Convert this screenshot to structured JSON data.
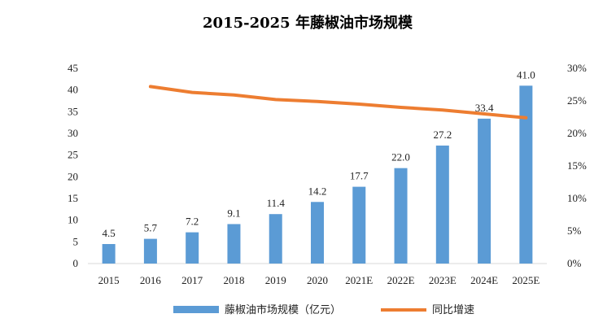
{
  "chart_data": {
    "type": "bar",
    "title": "2015-2025 年藤椒油市场规模",
    "categories": [
      "2015",
      "2016",
      "2017",
      "2018",
      "2019",
      "2020",
      "2021E",
      "2022E",
      "2023E",
      "2024E",
      "2025E"
    ],
    "series": [
      {
        "name": "藤椒油市场规模（亿元）",
        "type": "bar",
        "axis": "left",
        "color": "#5B9BD5",
        "values": [
          4.5,
          5.7,
          7.2,
          9.1,
          11.4,
          14.2,
          17.7,
          22.0,
          27.2,
          33.4,
          41.0
        ],
        "labels": [
          "4.5",
          "5.7",
          "7.2",
          "9.1",
          "11.4",
          "14.2",
          "17.7",
          "22.0",
          "27.2",
          "33.4",
          "41.0"
        ]
      },
      {
        "name": "同比增速",
        "type": "line",
        "axis": "right",
        "color": "#ED7D31",
        "values": [
          null,
          27.2,
          26.3,
          25.9,
          25.2,
          24.9,
          24.5,
          24.0,
          23.6,
          23.0,
          22.4
        ]
      }
    ],
    "y_left": {
      "min": 0,
      "max": 45,
      "ticks": [
        "0",
        "5",
        "10",
        "15",
        "20",
        "25",
        "30",
        "35",
        "40",
        "45"
      ]
    },
    "y_right": {
      "min": 0,
      "max": 30,
      "ticks": [
        "0%",
        "5%",
        "10%",
        "15%",
        "20%",
        "25%",
        "30%"
      ]
    },
    "grid": false,
    "legend_position": "bottom"
  }
}
